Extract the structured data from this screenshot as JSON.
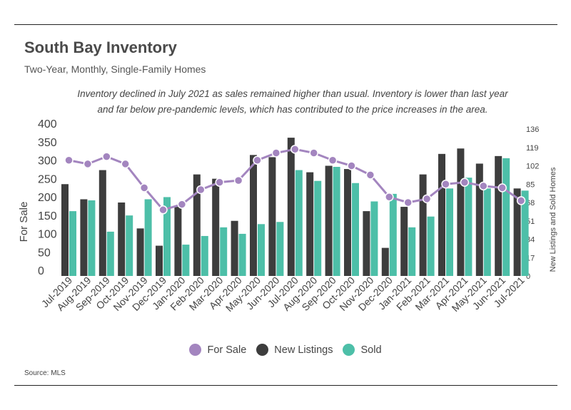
{
  "header": {
    "title": "South Bay Inventory",
    "subtitle": "Two-Year, Monthly, Single-Family Homes",
    "note_line1": "Inventory declined in July 2021 as sales remained higher than usual. Inventory is lower than last year",
    "note_line2": "and far below pre-pandemic levels, which has contributed to the price increases in the area."
  },
  "source": "Source:  MLS",
  "colors": {
    "for_sale": "#a385bf",
    "new_listings": "#3d3d3d",
    "sold": "#4dbfa8"
  },
  "chart_data": {
    "type": "bar",
    "categories": [
      "Jul-2019",
      "Aug-2019",
      "Sep-2019",
      "Oct-2019",
      "Nov-2019",
      "Dec-2019",
      "Jan-2020",
      "Feb-2020",
      "Mar-2020",
      "Apr-2020",
      "May-2020",
      "Jun-2020",
      "Jul-2020",
      "Aug-2020",
      "Sep-2020",
      "Oct-2020",
      "Nov-2020",
      "Dec-2020",
      "Jan-2021",
      "Feb-2021",
      "Mar-2021",
      "Apr-2021",
      "May-2021",
      "Jun-2021",
      "Jul-2021"
    ],
    "series": [
      {
        "name": "For Sale",
        "kind": "line",
        "axis": "left",
        "values": [
          315,
          305,
          325,
          305,
          240,
          180,
          195,
          235,
          255,
          260,
          315,
          335,
          345,
          335,
          315,
          300,
          275,
          215,
          200,
          210,
          250,
          255,
          245,
          240,
          205
        ]
      },
      {
        "name": "New Listings",
        "kind": "bar",
        "axis": "right",
        "values": [
          85,
          71,
          98,
          68,
          44,
          28,
          64,
          94,
          90,
          51,
          112,
          110,
          128,
          96,
          102,
          99,
          60,
          26,
          64,
          94,
          113,
          118,
          104,
          111,
          81
        ]
      },
      {
        "name": "Sold",
        "kind": "bar",
        "axis": "right",
        "values": [
          60,
          70,
          41,
          56,
          71,
          73,
          29,
          37,
          45,
          39,
          48,
          50,
          98,
          88,
          101,
          86,
          69,
          76,
          45,
          55,
          81,
          91,
          81,
          109,
          79
        ]
      }
    ],
    "ylabel_left": "For Sale",
    "ylabel_right": "New Listings and Sold Homes",
    "yticks_left": [
      "400",
      "350",
      "300",
      "250",
      "200",
      "150",
      "100",
      "50",
      "0"
    ],
    "yticks_right": [
      "136",
      "119",
      "102",
      "85",
      "68",
      "51",
      "34",
      "17",
      "0"
    ],
    "ylim_left": [
      0,
      400
    ],
    "ylim_right": [
      0,
      136
    ],
    "grid": false,
    "legend_position": "bottom-center"
  }
}
